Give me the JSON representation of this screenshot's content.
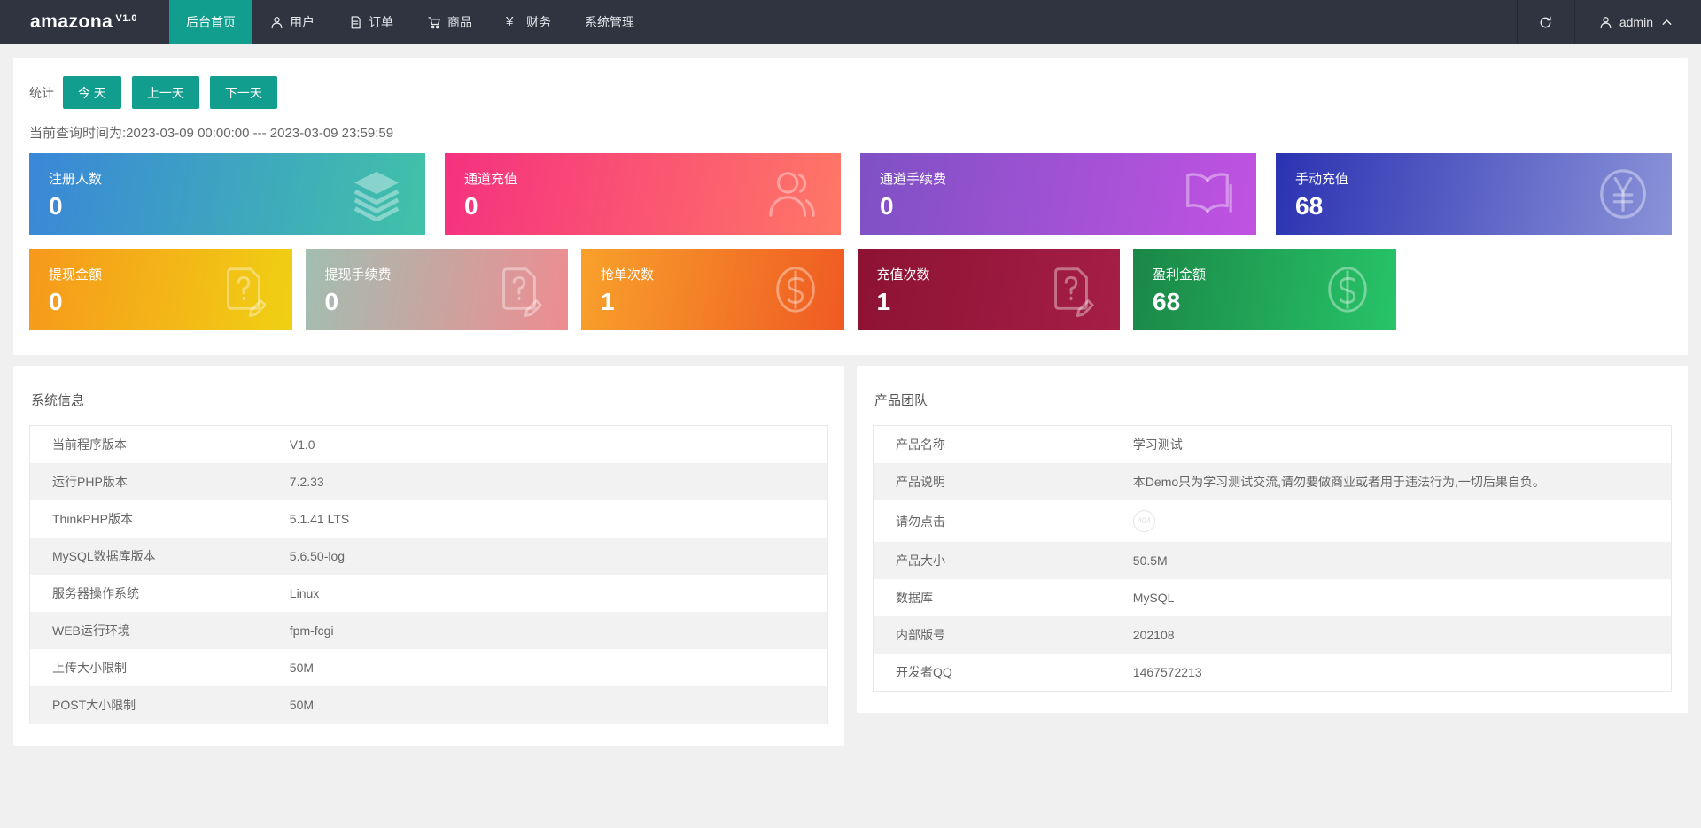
{
  "theme": {
    "accent": "#119E8E",
    "navbar_bg": "#2F3440"
  },
  "navbar": {
    "brand": "amazona",
    "brand_version": "V1.0",
    "items": [
      {
        "label": "后台首页",
        "icon": null,
        "active": true
      },
      {
        "label": "用户",
        "icon": "user-icon",
        "active": false
      },
      {
        "label": "订单",
        "icon": "order-icon",
        "active": false
      },
      {
        "label": "商品",
        "icon": "cart-icon",
        "active": false
      },
      {
        "label": "财务",
        "icon": "yen-icon",
        "active": false
      },
      {
        "label": "系统管理",
        "icon": null,
        "active": false
      }
    ],
    "user": {
      "name": "admin"
    }
  },
  "stats": {
    "section_label": "统计",
    "range_buttons": [
      {
        "label": "今 天"
      },
      {
        "label": "上一天"
      },
      {
        "label": "下一天"
      }
    ],
    "query_time": "当前查询时间为:2023-03-09 00:00:00 --- 2023-03-09 23:59:59",
    "cards_row1": [
      {
        "label": "注册人数",
        "value": "0",
        "icon": "layers-icon",
        "gradient_from": "#3A87D8",
        "gradient_to": "#41C2A8"
      },
      {
        "label": "通道充值",
        "value": "0",
        "icon": "users-icon",
        "gradient_from": "#F5317F",
        "gradient_to": "#FF7766"
      },
      {
        "label": "通道手续费",
        "value": "0",
        "icon": "book-icon",
        "gradient_from": "#7E51C4",
        "gradient_to": "#C152E2"
      },
      {
        "label": "手动充值",
        "value": "68",
        "icon": "yen-circle-icon",
        "gradient_from": "#2B32B2",
        "gradient_to": "#8A92D8"
      }
    ],
    "cards_row2": [
      {
        "label": "提现金额",
        "value": "0",
        "icon": "edit-doc-icon",
        "gradient_from": "#F7981C",
        "gradient_to": "#F0D013"
      },
      {
        "label": "提现手续费",
        "value": "0",
        "icon": "edit-doc-icon",
        "gradient_from": "#A2BEB1",
        "gradient_to": "#EE8C90"
      },
      {
        "label": "抢单次数",
        "value": "1",
        "icon": "dollar-circle-icon",
        "gradient_from": "#F8A12B",
        "gradient_to": "#EF5A23"
      },
      {
        "label": "充值次数",
        "value": "1",
        "icon": "edit-doc-icon",
        "gradient_from": "#8D1232",
        "gradient_to": "#A51E47"
      },
      {
        "label": "盈利金额",
        "value": "68",
        "icon": "dollar-circle-icon",
        "gradient_from": "#1B8747",
        "gradient_to": "#27C468"
      }
    ]
  },
  "system_info": {
    "title": "系统信息",
    "rows": [
      {
        "label": "当前程序版本",
        "value": "V1.0"
      },
      {
        "label": "运行PHP版本",
        "value": "7.2.33"
      },
      {
        "label": "ThinkPHP版本",
        "value": "5.1.41 LTS"
      },
      {
        "label": "MySQL数据库版本",
        "value": "5.6.50-log"
      },
      {
        "label": "服务器操作系统",
        "value": "Linux"
      },
      {
        "label": "WEB运行环境",
        "value": "fpm-fcgi"
      },
      {
        "label": "上传大小限制",
        "value": "50M"
      },
      {
        "label": "POST大小限制",
        "value": "50M"
      }
    ]
  },
  "product_team": {
    "title": "产品团队",
    "rows": [
      {
        "label": "产品名称",
        "value": "学习测试"
      },
      {
        "label": "产品说明",
        "value": "本Demo只为学习测试交流,请勿要做商业或者用于违法行为,一切后果自负。"
      },
      {
        "label": "请勿点击",
        "value": "404",
        "badge": true
      },
      {
        "label": "产品大小",
        "value": "50.5M"
      },
      {
        "label": "数据库",
        "value": "MySQL"
      },
      {
        "label": "内部版号",
        "value": "202108"
      },
      {
        "label": "开发者QQ",
        "value": "1467572213"
      }
    ]
  }
}
